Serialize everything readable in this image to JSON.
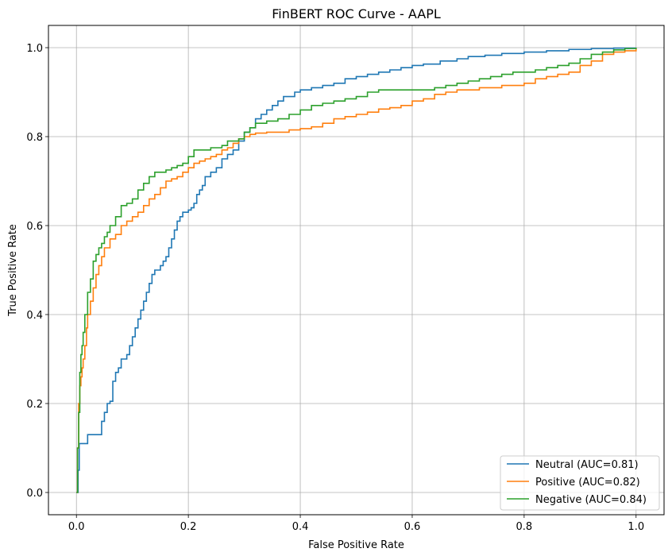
{
  "chart_data": {
    "type": "line",
    "title": "FinBERT ROC Curve - AAPL",
    "xlabel": "False Positive Rate",
    "ylabel": "True Positive Rate",
    "xlim": [
      -0.05,
      1.05
    ],
    "ylim": [
      -0.05,
      1.05
    ],
    "xticks": [
      "0.0",
      "0.2",
      "0.4",
      "0.6",
      "0.8",
      "1.0"
    ],
    "yticks": [
      "0.0",
      "0.2",
      "0.4",
      "0.6",
      "0.8",
      "1.0"
    ],
    "grid": true,
    "legend_position": "lower-right",
    "series": [
      {
        "name": "Neutral (AUC=0.81)",
        "color": "#1f77b4",
        "points": [
          [
            0,
            0
          ],
          [
            0.003,
            0.05
          ],
          [
            0.005,
            0.11
          ],
          [
            0.02,
            0.11
          ],
          [
            0.02,
            0.13
          ],
          [
            0.04,
            0.13
          ],
          [
            0.045,
            0.16
          ],
          [
            0.05,
            0.18
          ],
          [
            0.055,
            0.2
          ],
          [
            0.06,
            0.205
          ],
          [
            0.065,
            0.25
          ],
          [
            0.07,
            0.27
          ],
          [
            0.075,
            0.28
          ],
          [
            0.08,
            0.3
          ],
          [
            0.09,
            0.31
          ],
          [
            0.095,
            0.33
          ],
          [
            0.1,
            0.35
          ],
          [
            0.105,
            0.37
          ],
          [
            0.11,
            0.39
          ],
          [
            0.115,
            0.41
          ],
          [
            0.12,
            0.43
          ],
          [
            0.125,
            0.45
          ],
          [
            0.13,
            0.47
          ],
          [
            0.135,
            0.49
          ],
          [
            0.14,
            0.5
          ],
          [
            0.15,
            0.51
          ],
          [
            0.155,
            0.52
          ],
          [
            0.16,
            0.53
          ],
          [
            0.165,
            0.55
          ],
          [
            0.17,
            0.57
          ],
          [
            0.175,
            0.59
          ],
          [
            0.18,
            0.61
          ],
          [
            0.185,
            0.62
          ],
          [
            0.19,
            0.63
          ],
          [
            0.2,
            0.635
          ],
          [
            0.205,
            0.64
          ],
          [
            0.21,
            0.65
          ],
          [
            0.215,
            0.67
          ],
          [
            0.22,
            0.68
          ],
          [
            0.225,
            0.69
          ],
          [
            0.23,
            0.71
          ],
          [
            0.24,
            0.72
          ],
          [
            0.25,
            0.73
          ],
          [
            0.26,
            0.75
          ],
          [
            0.27,
            0.76
          ],
          [
            0.28,
            0.77
          ],
          [
            0.29,
            0.79
          ],
          [
            0.3,
            0.81
          ],
          [
            0.31,
            0.82
          ],
          [
            0.32,
            0.84
          ],
          [
            0.33,
            0.85
          ],
          [
            0.34,
            0.86
          ],
          [
            0.35,
            0.87
          ],
          [
            0.36,
            0.88
          ],
          [
            0.37,
            0.89
          ],
          [
            0.38,
            0.89
          ],
          [
            0.39,
            0.9
          ],
          [
            0.4,
            0.905
          ],
          [
            0.42,
            0.91
          ],
          [
            0.44,
            0.915
          ],
          [
            0.46,
            0.92
          ],
          [
            0.48,
            0.93
          ],
          [
            0.5,
            0.935
          ],
          [
            0.52,
            0.94
          ],
          [
            0.54,
            0.945
          ],
          [
            0.56,
            0.95
          ],
          [
            0.58,
            0.955
          ],
          [
            0.6,
            0.96
          ],
          [
            0.62,
            0.963
          ],
          [
            0.65,
            0.97
          ],
          [
            0.68,
            0.975
          ],
          [
            0.7,
            0.98
          ],
          [
            0.73,
            0.983
          ],
          [
            0.76,
            0.987
          ],
          [
            0.8,
            0.99
          ],
          [
            0.84,
            0.993
          ],
          [
            0.88,
            0.996
          ],
          [
            0.92,
            0.998
          ],
          [
            0.96,
            0.999
          ],
          [
            1,
            1
          ]
        ]
      },
      {
        "name": "Positive (AUC=0.82)",
        "color": "#ff7f0e",
        "points": [
          [
            0,
            0
          ],
          [
            0.002,
            0.1
          ],
          [
            0.004,
            0.2
          ],
          [
            0.006,
            0.24
          ],
          [
            0.008,
            0.26
          ],
          [
            0.01,
            0.28
          ],
          [
            0.012,
            0.3
          ],
          [
            0.015,
            0.33
          ],
          [
            0.018,
            0.37
          ],
          [
            0.02,
            0.4
          ],
          [
            0.025,
            0.43
          ],
          [
            0.03,
            0.46
          ],
          [
            0.035,
            0.49
          ],
          [
            0.04,
            0.51
          ],
          [
            0.045,
            0.53
          ],
          [
            0.05,
            0.55
          ],
          [
            0.06,
            0.57
          ],
          [
            0.07,
            0.58
          ],
          [
            0.08,
            0.6
          ],
          [
            0.09,
            0.61
          ],
          [
            0.1,
            0.62
          ],
          [
            0.11,
            0.63
          ],
          [
            0.12,
            0.645
          ],
          [
            0.13,
            0.66
          ],
          [
            0.14,
            0.67
          ],
          [
            0.15,
            0.685
          ],
          [
            0.16,
            0.7
          ],
          [
            0.17,
            0.705
          ],
          [
            0.18,
            0.71
          ],
          [
            0.19,
            0.72
          ],
          [
            0.2,
            0.73
          ],
          [
            0.21,
            0.74
          ],
          [
            0.22,
            0.745
          ],
          [
            0.23,
            0.75
          ],
          [
            0.24,
            0.755
          ],
          [
            0.25,
            0.76
          ],
          [
            0.26,
            0.77
          ],
          [
            0.27,
            0.775
          ],
          [
            0.28,
            0.785
          ],
          [
            0.29,
            0.795
          ],
          [
            0.3,
            0.8
          ],
          [
            0.31,
            0.805
          ],
          [
            0.32,
            0.808
          ],
          [
            0.34,
            0.81
          ],
          [
            0.36,
            0.81
          ],
          [
            0.38,
            0.815
          ],
          [
            0.4,
            0.818
          ],
          [
            0.42,
            0.822
          ],
          [
            0.44,
            0.83
          ],
          [
            0.46,
            0.84
          ],
          [
            0.48,
            0.845
          ],
          [
            0.5,
            0.85
          ],
          [
            0.52,
            0.855
          ],
          [
            0.54,
            0.862
          ],
          [
            0.56,
            0.865
          ],
          [
            0.58,
            0.87
          ],
          [
            0.6,
            0.875
          ],
          [
            0.6,
            0.88
          ],
          [
            0.62,
            0.885
          ],
          [
            0.64,
            0.895
          ],
          [
            0.66,
            0.9
          ],
          [
            0.68,
            0.905
          ],
          [
            0.7,
            0.905
          ],
          [
            0.72,
            0.91
          ],
          [
            0.74,
            0.91
          ],
          [
            0.76,
            0.915
          ],
          [
            0.78,
            0.915
          ],
          [
            0.8,
            0.92
          ],
          [
            0.82,
            0.93
          ],
          [
            0.84,
            0.935
          ],
          [
            0.86,
            0.94
          ],
          [
            0.88,
            0.945
          ],
          [
            0.9,
            0.96
          ],
          [
            0.92,
            0.97
          ],
          [
            0.94,
            0.985
          ],
          [
            0.96,
            0.99
          ],
          [
            0.98,
            0.993
          ],
          [
            1,
            1
          ]
        ]
      },
      {
        "name": "Negative (AUC=0.84)",
        "color": "#2ca02c",
        "points": [
          [
            0,
            0
          ],
          [
            0.002,
            0.1
          ],
          [
            0.004,
            0.18
          ],
          [
            0.006,
            0.27
          ],
          [
            0.008,
            0.31
          ],
          [
            0.01,
            0.33
          ],
          [
            0.012,
            0.36
          ],
          [
            0.015,
            0.4
          ],
          [
            0.02,
            0.45
          ],
          [
            0.025,
            0.48
          ],
          [
            0.03,
            0.52
          ],
          [
            0.035,
            0.535
          ],
          [
            0.04,
            0.55
          ],
          [
            0.045,
            0.56
          ],
          [
            0.05,
            0.575
          ],
          [
            0.055,
            0.585
          ],
          [
            0.06,
            0.6
          ],
          [
            0.07,
            0.62
          ],
          [
            0.08,
            0.645
          ],
          [
            0.09,
            0.65
          ],
          [
            0.1,
            0.66
          ],
          [
            0.11,
            0.68
          ],
          [
            0.12,
            0.695
          ],
          [
            0.13,
            0.71
          ],
          [
            0.14,
            0.72
          ],
          [
            0.15,
            0.72
          ],
          [
            0.16,
            0.725
          ],
          [
            0.17,
            0.73
          ],
          [
            0.18,
            0.735
          ],
          [
            0.19,
            0.74
          ],
          [
            0.2,
            0.755
          ],
          [
            0.21,
            0.77
          ],
          [
            0.22,
            0.77
          ],
          [
            0.24,
            0.775
          ],
          [
            0.26,
            0.78
          ],
          [
            0.27,
            0.79
          ],
          [
            0.28,
            0.79
          ],
          [
            0.29,
            0.795
          ],
          [
            0.3,
            0.81
          ],
          [
            0.31,
            0.82
          ],
          [
            0.32,
            0.83
          ],
          [
            0.34,
            0.835
          ],
          [
            0.36,
            0.84
          ],
          [
            0.38,
            0.85
          ],
          [
            0.4,
            0.86
          ],
          [
            0.42,
            0.87
          ],
          [
            0.44,
            0.875
          ],
          [
            0.46,
            0.88
          ],
          [
            0.48,
            0.885
          ],
          [
            0.5,
            0.89
          ],
          [
            0.52,
            0.9
          ],
          [
            0.54,
            0.905
          ],
          [
            0.56,
            0.905
          ],
          [
            0.58,
            0.905
          ],
          [
            0.6,
            0.905
          ],
          [
            0.62,
            0.905
          ],
          [
            0.64,
            0.91
          ],
          [
            0.66,
            0.915
          ],
          [
            0.68,
            0.92
          ],
          [
            0.7,
            0.925
          ],
          [
            0.72,
            0.93
          ],
          [
            0.74,
            0.935
          ],
          [
            0.76,
            0.94
          ],
          [
            0.78,
            0.945
          ],
          [
            0.8,
            0.945
          ],
          [
            0.82,
            0.95
          ],
          [
            0.84,
            0.955
          ],
          [
            0.86,
            0.96
          ],
          [
            0.88,
            0.965
          ],
          [
            0.9,
            0.975
          ],
          [
            0.92,
            0.985
          ],
          [
            0.94,
            0.99
          ],
          [
            0.96,
            0.995
          ],
          [
            0.98,
            0.998
          ],
          [
            1,
            1
          ]
        ]
      }
    ]
  }
}
